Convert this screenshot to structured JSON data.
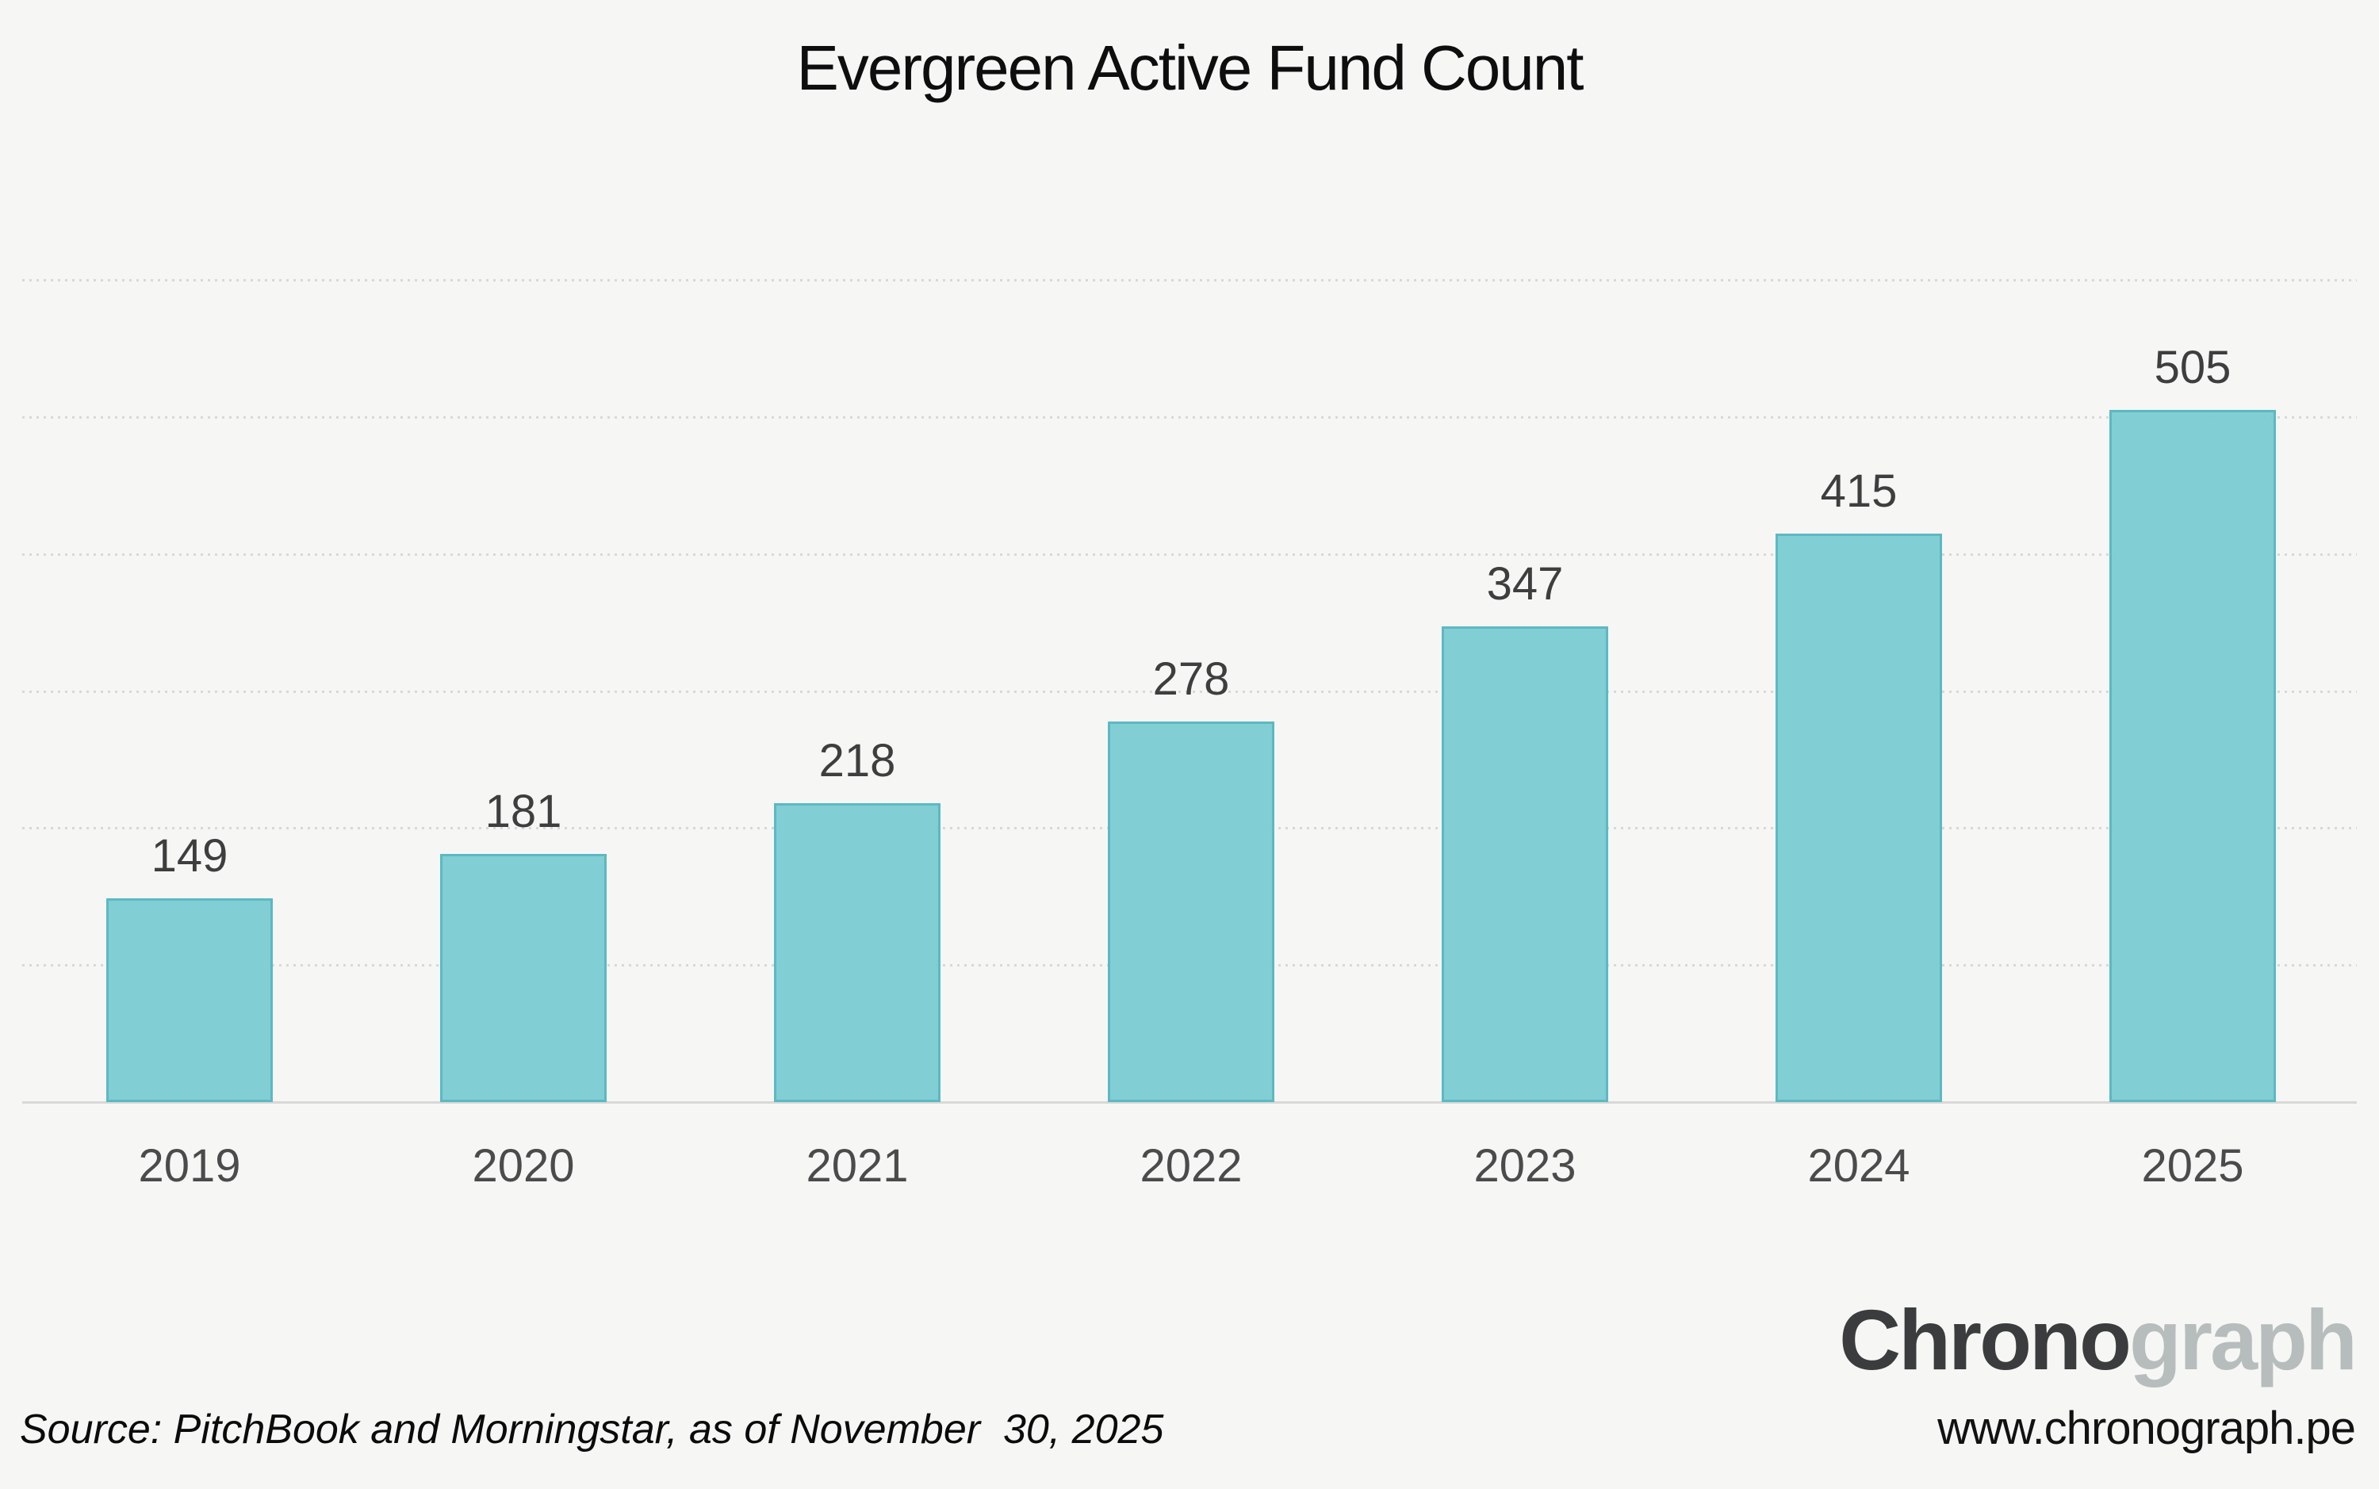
{
  "title": "Evergreen Active Fund Count",
  "chart_data": {
    "type": "bar",
    "title": "Evergreen Active Fund Count",
    "categories": [
      "2019",
      "2020",
      "2021",
      "2022",
      "2023",
      "2024",
      "2025"
    ],
    "values": [
      149,
      181,
      218,
      278,
      347,
      415,
      505
    ],
    "xlabel": "",
    "ylabel": "",
    "ylim": [
      0,
      600
    ],
    "gridline_interval": 100,
    "grid": "horizontal-dotted",
    "legend_position": "none",
    "bar_value_labels_shown": true,
    "y_axis_tick_labels_shown": false
  },
  "source": {
    "text": "Source: PitchBook and Morningstar, as of November  30, 2025"
  },
  "logo": {
    "primary": "Chrono",
    "secondary": "graph",
    "url": "www.chronograph.pe"
  },
  "colors": {
    "background": "#f6f6f5",
    "bar_fill": "#7ecdd4",
    "bar_border": "#58b8c1",
    "gridline": "#d8d8d6",
    "axis_line": "#d8d8d6",
    "title_text": "#0e0e0e",
    "value_label": "#3e3e3e",
    "tick_label": "#4b4b4b",
    "source_text": "#0b0b0b",
    "logo_primary": "#3a3c3d",
    "logo_secondary": "#b7bdbd",
    "url_text": "#121212"
  }
}
